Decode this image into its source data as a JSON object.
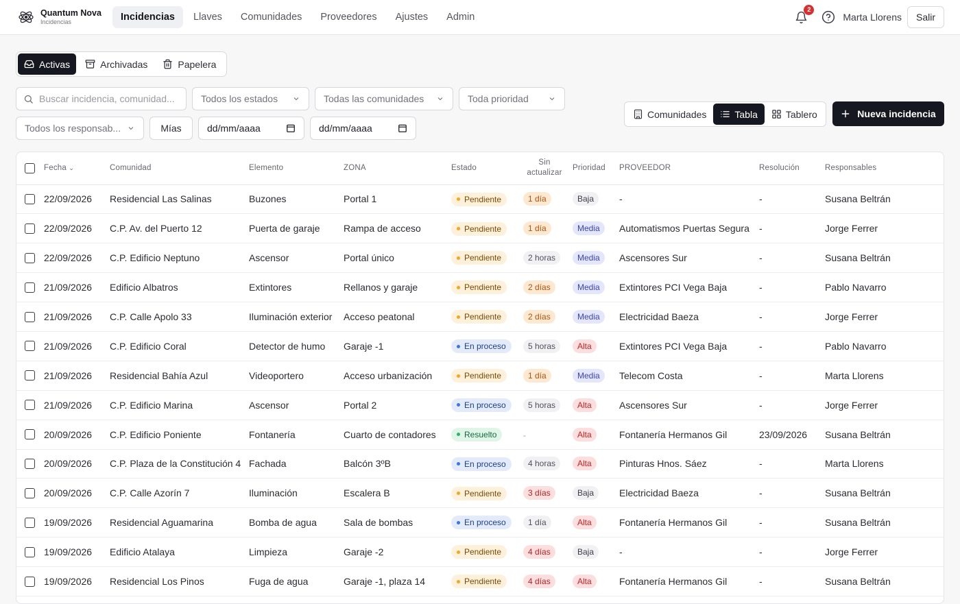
{
  "brand": {
    "name": "Quantum Nova",
    "sub": "Incidencias"
  },
  "nav": [
    {
      "label": "Incidencias",
      "active": true,
      "name": "nav-incidencias"
    },
    {
      "label": "Llaves",
      "active": false,
      "name": "nav-llaves"
    },
    {
      "label": "Comunidades",
      "active": false,
      "name": "nav-comunidades"
    },
    {
      "label": "Proveedores",
      "active": false,
      "name": "nav-proveedores"
    },
    {
      "label": "Ajustes",
      "active": false,
      "name": "nav-ajustes"
    },
    {
      "label": "Admin",
      "active": false,
      "name": "nav-admin"
    }
  ],
  "topbar": {
    "notifications": "2",
    "user": "Marta Llorens",
    "logout": "Salir"
  },
  "segment": {
    "active": "Activas",
    "archived": "Archivadas",
    "trash": "Papelera"
  },
  "filters": {
    "search_placeholder": "Buscar incidencia, comunidad...",
    "status": "Todos los estados",
    "community": "Todas las comunidades",
    "priority": "Toda prioridad",
    "assignee": "Todos los responsab...",
    "mine": "Mías",
    "date_from": "dd/mm/aaaa",
    "date_to": "dd/mm/aaaa"
  },
  "views": {
    "communities": "Comunidades",
    "table": "Tabla",
    "board": "Tablero"
  },
  "new_button": "Nueva incidencia",
  "columns": {
    "fecha": "Fecha",
    "comunidad": "Comunidad",
    "elemento": "Elemento",
    "zona": "ZONA",
    "estado": "Estado",
    "sin_actualizar_1": "Sin",
    "sin_actualizar_2": "actualizar",
    "prioridad": "Prioridad",
    "proveedor": "PROVEEDOR",
    "resolucion": "Resolución",
    "responsables": "Responsables"
  },
  "rows": [
    {
      "fecha": "22/09/2026",
      "comunidad": "Residencial Las Salinas",
      "elemento": "Buzones",
      "zona": "Portal 1",
      "estado": "Pendiente",
      "estado_kind": "pend",
      "sin": "1 día",
      "sin_kind": "warn",
      "prioridad": "Baja",
      "prio_kind": "low",
      "proveedor": "-",
      "resolucion": "-",
      "responsable": "Susana Beltrán"
    },
    {
      "fecha": "22/09/2026",
      "comunidad": "C.P. Av. del Puerto 12",
      "elemento": "Puerta de garaje",
      "zona": "Rampa de acceso",
      "estado": "Pendiente",
      "estado_kind": "pend",
      "sin": "1 día",
      "sin_kind": "warn",
      "prioridad": "Media",
      "prio_kind": "mid",
      "proveedor": "Automatismos Puertas Segura",
      "resolucion": "-",
      "responsable": "Jorge Ferrer"
    },
    {
      "fecha": "22/09/2026",
      "comunidad": "C.P. Edificio Neptuno",
      "elemento": "Ascensor",
      "zona": "Portal único",
      "estado": "Pendiente",
      "estado_kind": "pend",
      "sin": "2 horas",
      "sin_kind": "ok",
      "prioridad": "Media",
      "prio_kind": "mid",
      "proveedor": "Ascensores Sur",
      "resolucion": "-",
      "responsable": "Susana Beltrán"
    },
    {
      "fecha": "21/09/2026",
      "comunidad": "Edificio Albatros",
      "elemento": "Extintores",
      "zona": "Rellanos y garaje",
      "estado": "Pendiente",
      "estado_kind": "pend",
      "sin": "2 días",
      "sin_kind": "warn",
      "prioridad": "Media",
      "prio_kind": "mid",
      "proveedor": "Extintores PCI Vega Baja",
      "resolucion": "-",
      "responsable": "Pablo Navarro"
    },
    {
      "fecha": "21/09/2026",
      "comunidad": "C.P. Calle Apolo 33",
      "elemento": "Iluminación exterior",
      "zona": "Acceso peatonal",
      "estado": "Pendiente",
      "estado_kind": "pend",
      "sin": "2 días",
      "sin_kind": "warn",
      "prioridad": "Media",
      "prio_kind": "mid",
      "proveedor": "Electricidad Baeza",
      "resolucion": "-",
      "responsable": "Jorge Ferrer"
    },
    {
      "fecha": "21/09/2026",
      "comunidad": "C.P. Edificio Coral",
      "elemento": "Detector de humo",
      "zona": "Garaje -1",
      "estado": "En proceso",
      "estado_kind": "proc",
      "sin": "5 horas",
      "sin_kind": "ok",
      "prioridad": "Alta",
      "prio_kind": "high",
      "proveedor": "Extintores PCI Vega Baja",
      "resolucion": "-",
      "responsable": "Pablo Navarro"
    },
    {
      "fecha": "21/09/2026",
      "comunidad": "Residencial Bahía Azul",
      "elemento": "Videoportero",
      "zona": "Acceso urbanización",
      "estado": "Pendiente",
      "estado_kind": "pend",
      "sin": "1 día",
      "sin_kind": "warn",
      "prioridad": "Media",
      "prio_kind": "mid",
      "proveedor": "Telecom Costa",
      "resolucion": "-",
      "responsable": "Marta Llorens"
    },
    {
      "fecha": "21/09/2026",
      "comunidad": "C.P. Edificio Marina",
      "elemento": "Ascensor",
      "zona": "Portal 2",
      "estado": "En proceso",
      "estado_kind": "proc",
      "sin": "5 horas",
      "sin_kind": "ok",
      "prioridad": "Alta",
      "prio_kind": "high",
      "proveedor": "Ascensores Sur",
      "resolucion": "-",
      "responsable": "Jorge Ferrer"
    },
    {
      "fecha": "20/09/2026",
      "comunidad": "C.P. Edificio Poniente",
      "elemento": "Fontanería",
      "zona": "Cuarto de contadores",
      "estado": "Resuelto",
      "estado_kind": "res",
      "sin": "-",
      "sin_kind": "none",
      "prioridad": "Alta",
      "prio_kind": "high",
      "proveedor": "Fontanería Hermanos Gil",
      "resolucion": "23/09/2026",
      "responsable": "Susana Beltrán"
    },
    {
      "fecha": "20/09/2026",
      "comunidad": "C.P. Plaza de la Constitución 4",
      "elemento": "Fachada",
      "zona": "Balcón 3ºB",
      "estado": "En proceso",
      "estado_kind": "proc",
      "sin": "4 horas",
      "sin_kind": "ok",
      "prioridad": "Alta",
      "prio_kind": "high",
      "proveedor": "Pinturas Hnos. Sáez",
      "resolucion": "-",
      "responsable": "Marta Llorens"
    },
    {
      "fecha": "20/09/2026",
      "comunidad": "C.P. Calle Azorín 7",
      "elemento": "Iluminación",
      "zona": "Escalera B",
      "estado": "Pendiente",
      "estado_kind": "pend",
      "sin": "3 días",
      "sin_kind": "bad",
      "prioridad": "Baja",
      "prio_kind": "low",
      "proveedor": "Electricidad Baeza",
      "resolucion": "-",
      "responsable": "Susana Beltrán"
    },
    {
      "fecha": "19/09/2026",
      "comunidad": "Residencial Aguamarina",
      "elemento": "Bomba de agua",
      "zona": "Sala de bombas",
      "estado": "En proceso",
      "estado_kind": "proc",
      "sin": "1 día",
      "sin_kind": "ok",
      "prioridad": "Alta",
      "prio_kind": "high",
      "proveedor": "Fontanería Hermanos Gil",
      "resolucion": "-",
      "responsable": "Susana Beltrán"
    },
    {
      "fecha": "19/09/2026",
      "comunidad": "Edificio Atalaya",
      "elemento": "Limpieza",
      "zona": "Garaje -2",
      "estado": "Pendiente",
      "estado_kind": "pend",
      "sin": "4 días",
      "sin_kind": "bad",
      "prioridad": "Baja",
      "prio_kind": "low",
      "proveedor": "-",
      "resolucion": "-",
      "responsable": "Jorge Ferrer"
    },
    {
      "fecha": "19/09/2026",
      "comunidad": "Residencial Los Pinos",
      "elemento": "Fuga de agua",
      "zona": "Garaje -1, plaza 14",
      "estado": "Pendiente",
      "estado_kind": "pend",
      "sin": "4 días",
      "sin_kind": "bad",
      "prioridad": "Alta",
      "prio_kind": "high",
      "proveedor": "Fontanería Hermanos Gil",
      "resolucion": "-",
      "responsable": "Susana Beltrán"
    }
  ]
}
